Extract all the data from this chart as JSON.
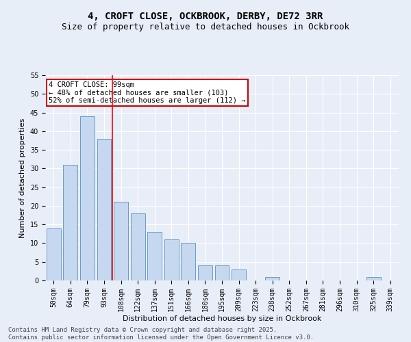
{
  "title1": "4, CROFT CLOSE, OCKBROOK, DERBY, DE72 3RR",
  "title2": "Size of property relative to detached houses in Ockbrook",
  "xlabel": "Distribution of detached houses by size in Ockbrook",
  "ylabel": "Number of detached properties",
  "categories": [
    "50sqm",
    "64sqm",
    "79sqm",
    "93sqm",
    "108sqm",
    "122sqm",
    "137sqm",
    "151sqm",
    "166sqm",
    "180sqm",
    "195sqm",
    "209sqm",
    "223sqm",
    "238sqm",
    "252sqm",
    "267sqm",
    "281sqm",
    "296sqm",
    "310sqm",
    "325sqm",
    "339sqm"
  ],
  "values": [
    14,
    31,
    44,
    38,
    21,
    18,
    13,
    11,
    10,
    4,
    4,
    3,
    0,
    1,
    0,
    0,
    0,
    0,
    0,
    1,
    0
  ],
  "bar_color": "#c5d8f0",
  "bar_edge_color": "#5a8fc0",
  "red_line_index": 3,
  "ylim": [
    0,
    55
  ],
  "yticks": [
    0,
    5,
    10,
    15,
    20,
    25,
    30,
    35,
    40,
    45,
    50,
    55
  ],
  "annotation_title": "4 CROFT CLOSE: 99sqm",
  "annotation_line1": "← 48% of detached houses are smaller (103)",
  "annotation_line2": "52% of semi-detached houses are larger (112) →",
  "annotation_box_color": "#ffffff",
  "annotation_box_edge_color": "#cc0000",
  "footer1": "Contains HM Land Registry data © Crown copyright and database right 2025.",
  "footer2": "Contains public sector information licensed under the Open Government Licence v3.0.",
  "bg_color": "#e8eef7",
  "plot_bg_color": "#e8eef7",
  "grid_color": "#ffffff",
  "title_fontsize": 10,
  "subtitle_fontsize": 9,
  "axis_label_fontsize": 8,
  "tick_fontsize": 7,
  "annotation_fontsize": 7.5,
  "footer_fontsize": 6.5
}
